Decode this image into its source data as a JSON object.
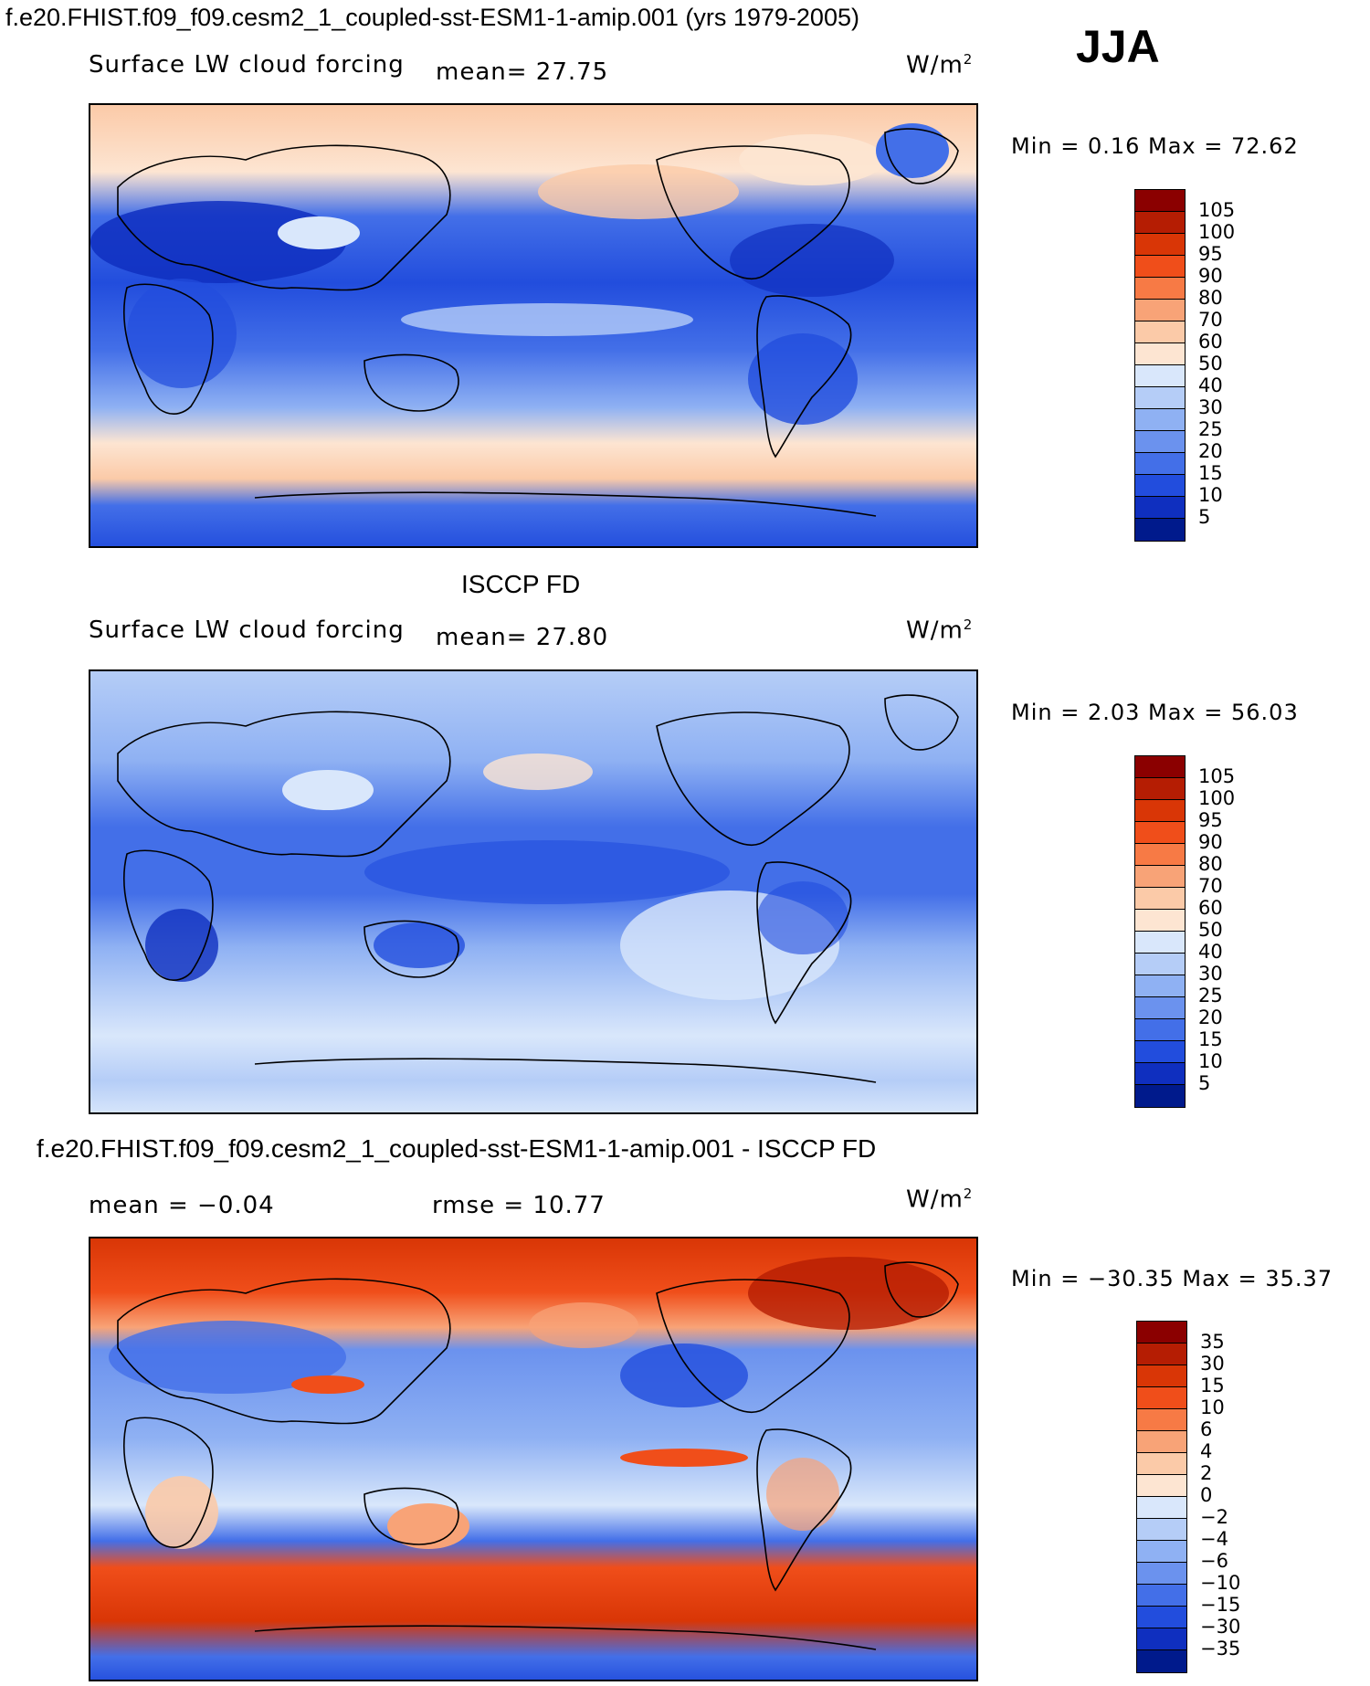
{
  "header": {
    "title": "f.e20.FHIST.f09_f09.cesm2_1_coupled-sst-ESM1-1-amip.001 (yrs 1979-2005)",
    "season": "JJA"
  },
  "panels": [
    {
      "title": "",
      "variable": "Surface LW cloud forcing",
      "stat1": "mean=  27.75",
      "stat2": "",
      "units": "W/m",
      "units_sup": "2",
      "minmax": "Min =   0.16 Max =  72.62",
      "colorbar": {
        "labels": [
          "105",
          "100",
          "95",
          "90",
          "80",
          "70",
          "60",
          "50",
          "40",
          "30",
          "25",
          "20",
          "15",
          "10",
          "5"
        ],
        "colors": [
          "#8b0000",
          "#b51d03",
          "#d93606",
          "#f04e1a",
          "#f77a45",
          "#f8a377",
          "#fbcaa8",
          "#fde5d2",
          "#d9e7fb",
          "#b5cdf7",
          "#8fb1f3",
          "#6b92ee",
          "#436fe8",
          "#224ddd",
          "#0f2fbf",
          "#001a8c"
        ]
      }
    },
    {
      "title": "ISCCP FD",
      "variable": "Surface LW cloud forcing",
      "stat1": "mean=  27.80",
      "stat2": "",
      "units": "W/m",
      "units_sup": "2",
      "minmax": "Min =   2.03 Max =  56.03",
      "colorbar": {
        "labels": [
          "105",
          "100",
          "95",
          "90",
          "80",
          "70",
          "60",
          "50",
          "40",
          "30",
          "25",
          "20",
          "15",
          "10",
          "5"
        ],
        "colors": [
          "#8b0000",
          "#b51d03",
          "#d93606",
          "#f04e1a",
          "#f77a45",
          "#f8a377",
          "#fbcaa8",
          "#fde5d2",
          "#d9e7fb",
          "#b5cdf7",
          "#8fb1f3",
          "#6b92ee",
          "#436fe8",
          "#224ddd",
          "#0f2fbf",
          "#001a8c"
        ]
      }
    },
    {
      "title": "f.e20.FHIST.f09_f09.cesm2_1_coupled-sst-ESM1-1-amip.001 - ISCCP FD",
      "variable": "",
      "stat1": "mean =  −0.04",
      "stat2": "rmse =  10.77",
      "units": "W/m",
      "units_sup": "2",
      "minmax": "Min = −30.35 Max =  35.37",
      "colorbar": {
        "labels": [
          "35",
          "30",
          "15",
          "10",
          "6",
          "4",
          "2",
          "0",
          "−2",
          "−4",
          "−6",
          "−10",
          "−15",
          "−30",
          "−35"
        ],
        "colors": [
          "#8b0000",
          "#b51d03",
          "#d93606",
          "#f04e1a",
          "#f77a45",
          "#f8a377",
          "#fbcaa8",
          "#fde5d2",
          "#d9e7fb",
          "#b5cdf7",
          "#8fb1f3",
          "#6b92ee",
          "#436fe8",
          "#224ddd",
          "#0f2fbf",
          "#001a8c"
        ]
      }
    }
  ],
  "chart_data": [
    {
      "type": "heatmap",
      "title": "f.e20.FHIST.f09_f09.cesm2_1_coupled-sst-ESM1-1-amip.001 (yrs 1979-2005)",
      "subtitle": "Surface LW cloud forcing",
      "season": "JJA",
      "units": "W/m2",
      "mean": 27.75,
      "min": 0.16,
      "max": 72.62,
      "contour_levels": [
        5,
        10,
        15,
        20,
        25,
        30,
        40,
        50,
        60,
        70,
        80,
        90,
        95,
        100,
        105
      ]
    },
    {
      "type": "heatmap",
      "title": "ISCCP FD",
      "subtitle": "Surface LW cloud forcing",
      "units": "W/m2",
      "mean": 27.8,
      "min": 2.03,
      "max": 56.03,
      "contour_levels": [
        5,
        10,
        15,
        20,
        25,
        30,
        40,
        50,
        60,
        70,
        80,
        90,
        95,
        100,
        105
      ]
    },
    {
      "type": "heatmap",
      "title": "f.e20.FHIST.f09_f09.cesm2_1_coupled-sst-ESM1-1-amip.001 - ISCCP FD",
      "units": "W/m2",
      "mean": -0.04,
      "rmse": 10.77,
      "min": -30.35,
      "max": 35.37,
      "contour_levels": [
        -35,
        -30,
        -15,
        -10,
        -6,
        -4,
        -2,
        0,
        2,
        4,
        6,
        10,
        15,
        30,
        35
      ]
    }
  ]
}
